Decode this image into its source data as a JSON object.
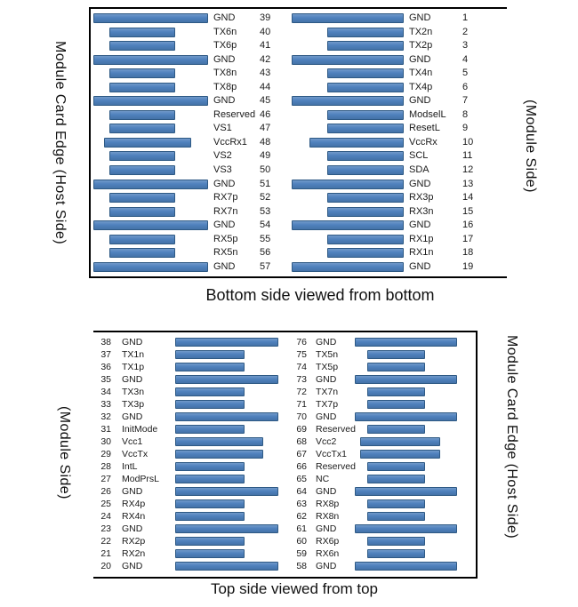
{
  "colors": {
    "pad_fill": "#4f81bd",
    "pad_border": "#2e5984",
    "panel_border": "#000000",
    "text": "#1a1a1a"
  },
  "top_panel": {
    "caption": "Bottom side viewed from bottom",
    "left_edge_label": "Module Card Edge (Host Side)",
    "right_edge_label": "(Module Side)",
    "left_column": {
      "pins": [
        {
          "num": 39,
          "name": "GND",
          "type": "gnd"
        },
        {
          "num": 40,
          "name": "TX6n",
          "type": "sig"
        },
        {
          "num": 41,
          "name": "TX6p",
          "type": "sig"
        },
        {
          "num": 42,
          "name": "GND",
          "type": "gnd"
        },
        {
          "num": 43,
          "name": "TX8n",
          "type": "sig"
        },
        {
          "num": 44,
          "name": "TX8p",
          "type": "sig"
        },
        {
          "num": 45,
          "name": "GND",
          "type": "gnd"
        },
        {
          "num": 46,
          "name": "Reserved",
          "type": "sig"
        },
        {
          "num": 47,
          "name": "VS1",
          "type": "sig"
        },
        {
          "num": 48,
          "name": "VccRx1",
          "type": "vcc"
        },
        {
          "num": 49,
          "name": "VS2",
          "type": "sig"
        },
        {
          "num": 50,
          "name": "VS3",
          "type": "sig"
        },
        {
          "num": 51,
          "name": "GND",
          "type": "gnd"
        },
        {
          "num": 52,
          "name": "RX7p",
          "type": "sig"
        },
        {
          "num": 53,
          "name": "RX7n",
          "type": "sig"
        },
        {
          "num": 54,
          "name": "GND",
          "type": "gnd"
        },
        {
          "num": 55,
          "name": "RX5p",
          "type": "sig"
        },
        {
          "num": 56,
          "name": "RX5n",
          "type": "sig"
        },
        {
          "num": 57,
          "name": "GND",
          "type": "gnd"
        }
      ]
    },
    "right_column": {
      "pins": [
        {
          "num": 1,
          "name": "GND",
          "type": "gnd"
        },
        {
          "num": 2,
          "name": "TX2n",
          "type": "sig"
        },
        {
          "num": 3,
          "name": "TX2p",
          "type": "sig"
        },
        {
          "num": 4,
          "name": "GND",
          "type": "gnd"
        },
        {
          "num": 5,
          "name": "TX4n",
          "type": "sig"
        },
        {
          "num": 6,
          "name": "TX4p",
          "type": "sig"
        },
        {
          "num": 7,
          "name": "GND",
          "type": "gnd"
        },
        {
          "num": 8,
          "name": "ModselL",
          "type": "sig"
        },
        {
          "num": 9,
          "name": "ResetL",
          "type": "sig"
        },
        {
          "num": 10,
          "name": "VccRx",
          "type": "vcc"
        },
        {
          "num": 11,
          "name": "SCL",
          "type": "sig"
        },
        {
          "num": 12,
          "name": "SDA",
          "type": "sig"
        },
        {
          "num": 13,
          "name": "GND",
          "type": "gnd"
        },
        {
          "num": 14,
          "name": "RX3p",
          "type": "sig"
        },
        {
          "num": 15,
          "name": "RX3n",
          "type": "sig"
        },
        {
          "num": 16,
          "name": "GND",
          "type": "gnd"
        },
        {
          "num": 17,
          "name": "RX1p",
          "type": "sig"
        },
        {
          "num": 18,
          "name": "RX1n",
          "type": "sig"
        },
        {
          "num": 19,
          "name": "GND",
          "type": "gnd"
        }
      ]
    }
  },
  "bottom_panel": {
    "caption": "Top side viewed from top",
    "left_edge_label": "(Module Side)",
    "right_edge_label": "Module Card Edge (Host Side)",
    "left_column": {
      "pins": [
        {
          "num": 38,
          "name": "GND",
          "type": "gnd"
        },
        {
          "num": 37,
          "name": "TX1n",
          "type": "sig"
        },
        {
          "num": 36,
          "name": "TX1p",
          "type": "sig"
        },
        {
          "num": 35,
          "name": "GND",
          "type": "gnd"
        },
        {
          "num": 34,
          "name": "TX3n",
          "type": "sig"
        },
        {
          "num": 33,
          "name": "TX3p",
          "type": "sig"
        },
        {
          "num": 32,
          "name": "GND",
          "type": "gnd"
        },
        {
          "num": 31,
          "name": "InitMode",
          "type": "sig"
        },
        {
          "num": 30,
          "name": "Vcc1",
          "type": "vcc"
        },
        {
          "num": 29,
          "name": "VccTx",
          "type": "vcc"
        },
        {
          "num": 28,
          "name": "IntL",
          "type": "sig"
        },
        {
          "num": 27,
          "name": "ModPrsL",
          "type": "sig"
        },
        {
          "num": 26,
          "name": "GND",
          "type": "gnd"
        },
        {
          "num": 25,
          "name": "RX4p",
          "type": "sig"
        },
        {
          "num": 24,
          "name": "RX4n",
          "type": "sig"
        },
        {
          "num": 23,
          "name": "GND",
          "type": "gnd"
        },
        {
          "num": 22,
          "name": "RX2p",
          "type": "sig"
        },
        {
          "num": 21,
          "name": "RX2n",
          "type": "sig"
        },
        {
          "num": 20,
          "name": "GND",
          "type": "gnd"
        }
      ]
    },
    "right_column": {
      "pins": [
        {
          "num": 76,
          "name": "GND",
          "type": "gnd"
        },
        {
          "num": 75,
          "name": "TX5n",
          "type": "sig"
        },
        {
          "num": 74,
          "name": "TX5p",
          "type": "sig"
        },
        {
          "num": 73,
          "name": "GND",
          "type": "gnd"
        },
        {
          "num": 72,
          "name": "TX7n",
          "type": "sig"
        },
        {
          "num": 71,
          "name": "TX7p",
          "type": "sig"
        },
        {
          "num": 70,
          "name": "GND",
          "type": "gnd"
        },
        {
          "num": 69,
          "name": "Reserved",
          "type": "sig"
        },
        {
          "num": 68,
          "name": "Vcc2",
          "type": "vcc"
        },
        {
          "num": 67,
          "name": "VccTx1",
          "type": "vcc"
        },
        {
          "num": 66,
          "name": "Reserved",
          "type": "sig"
        },
        {
          "num": 65,
          "name": "NC",
          "type": "sig"
        },
        {
          "num": 64,
          "name": "GND",
          "type": "gnd"
        },
        {
          "num": 63,
          "name": "RX8p",
          "type": "sig"
        },
        {
          "num": 62,
          "name": "RX8n",
          "type": "sig"
        },
        {
          "num": 61,
          "name": "GND",
          "type": "gnd"
        },
        {
          "num": 60,
          "name": "RX6p",
          "type": "sig"
        },
        {
          "num": 59,
          "name": "RX6n",
          "type": "sig"
        },
        {
          "num": 58,
          "name": "GND",
          "type": "gnd"
        }
      ]
    }
  }
}
